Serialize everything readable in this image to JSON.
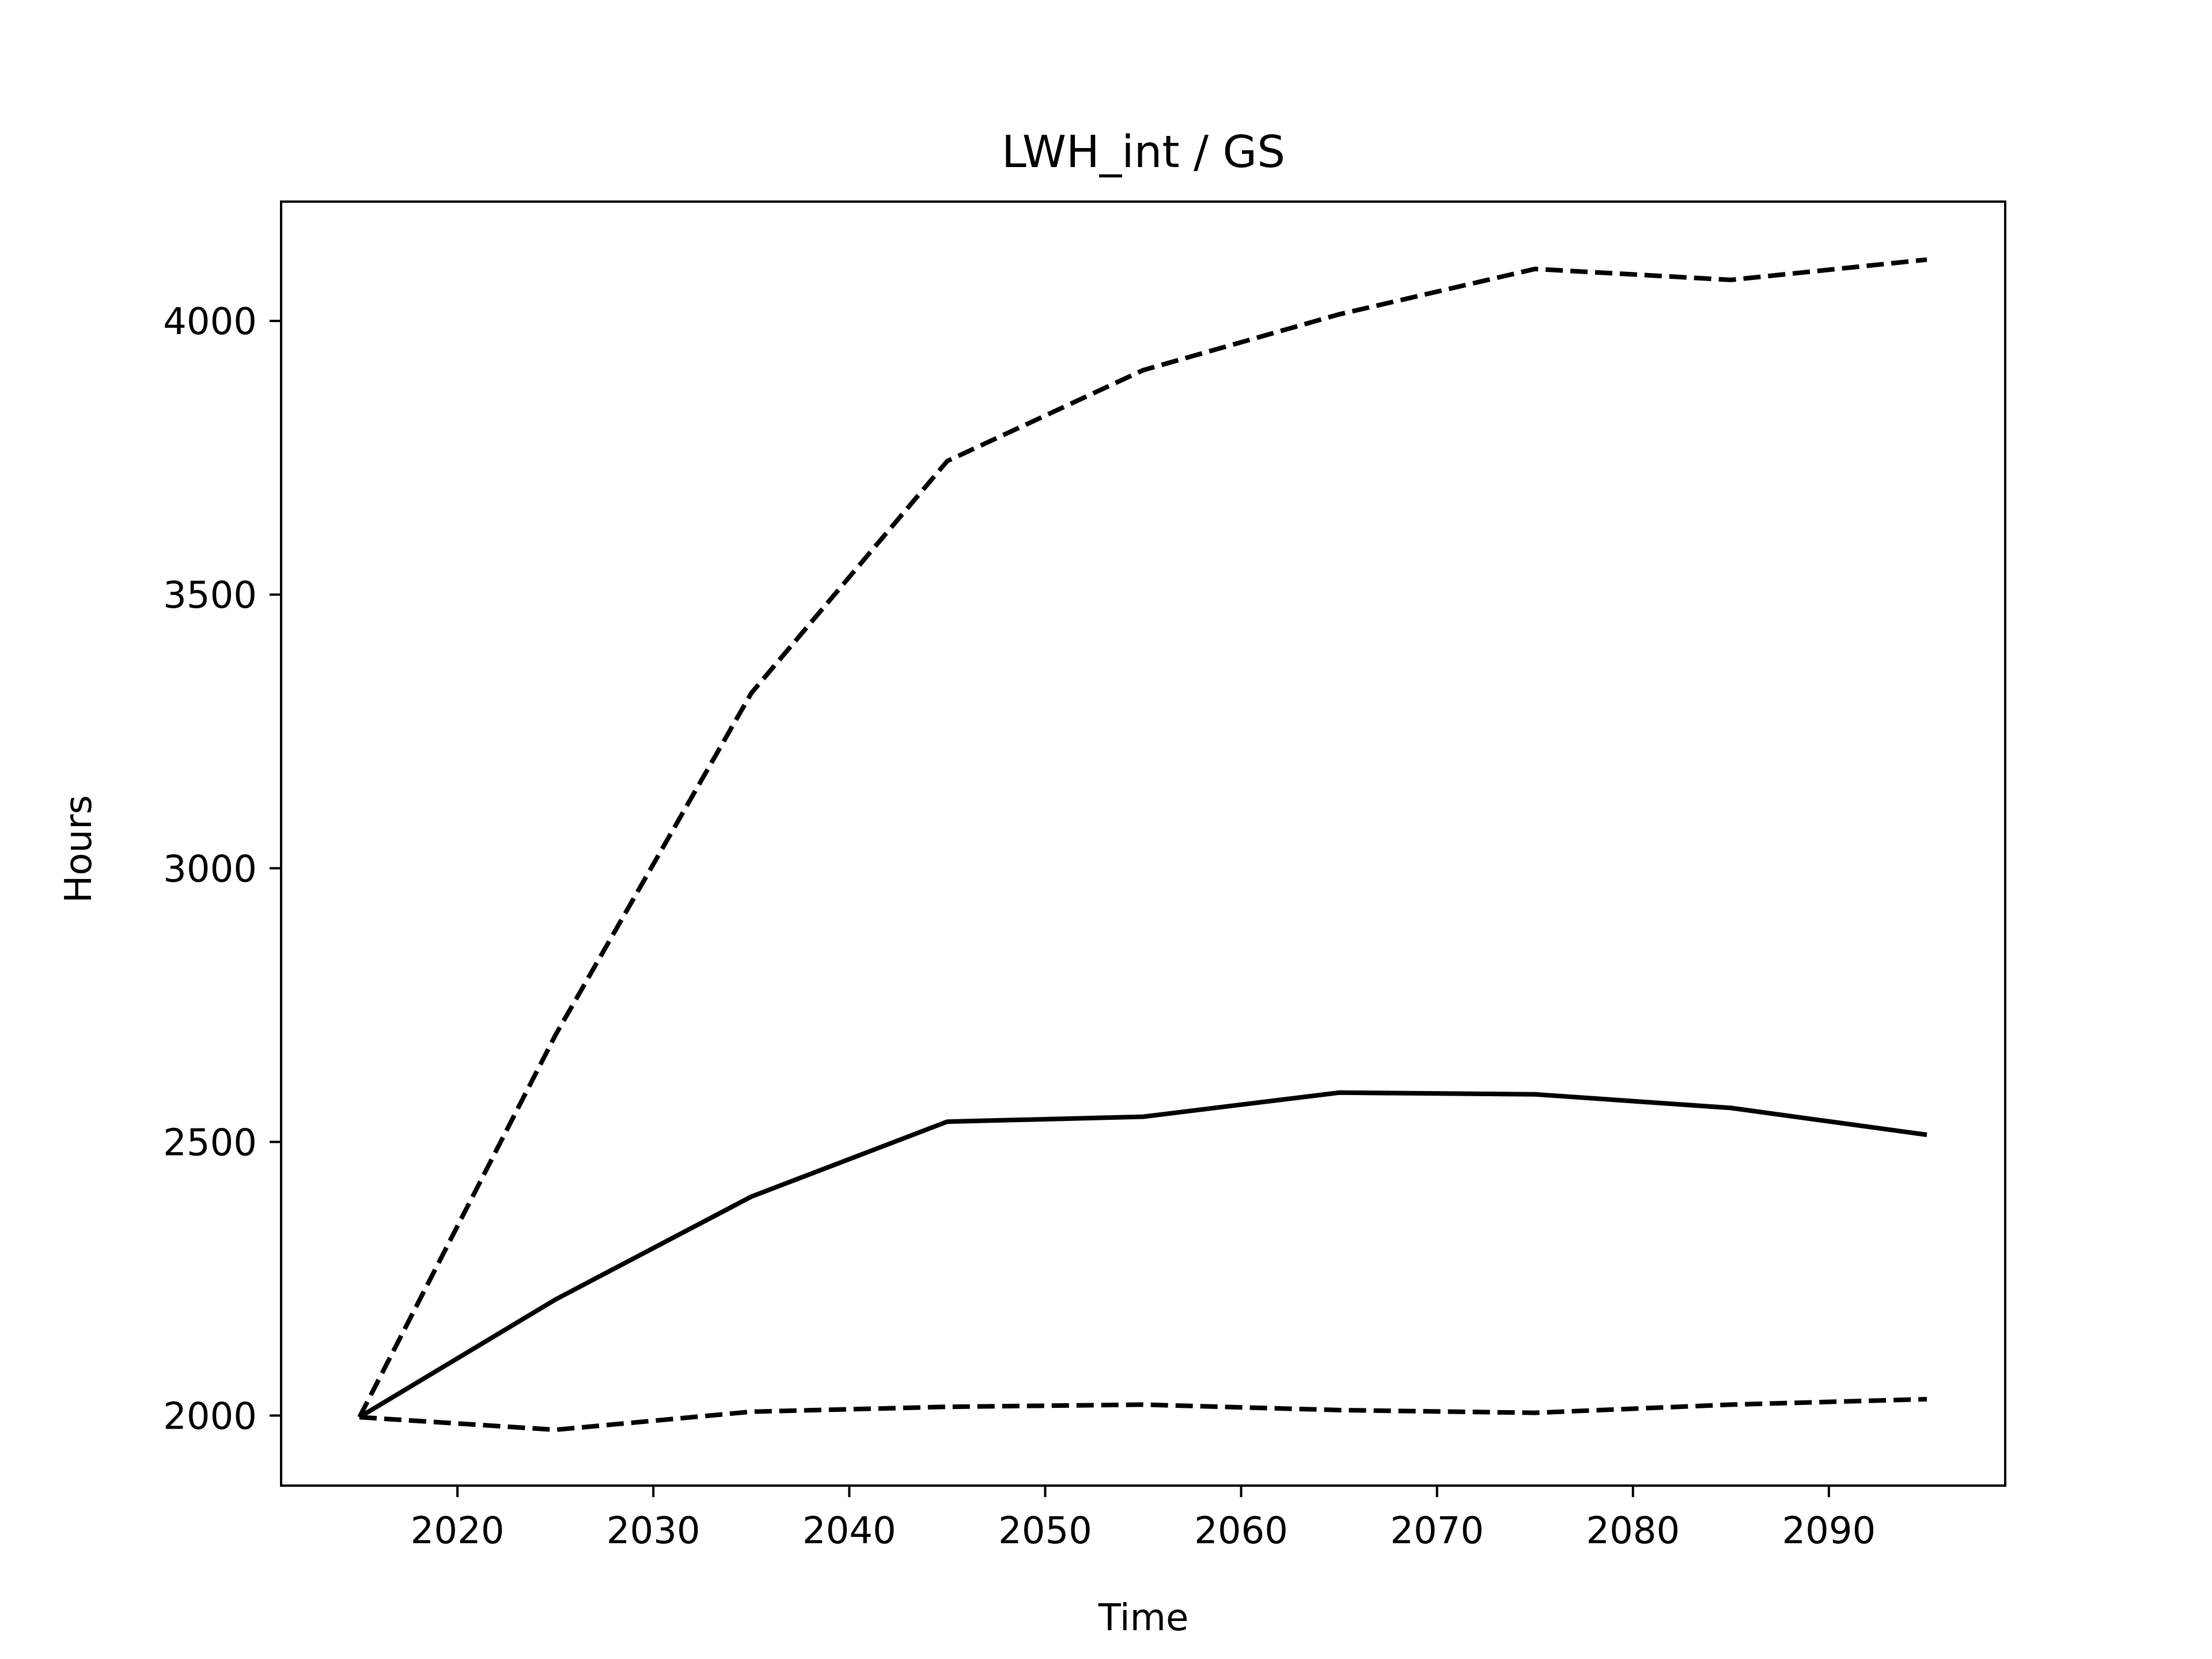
{
  "chart_data": {
    "type": "line",
    "title": "LWH_int / GS",
    "xlabel": "Time",
    "ylabel": "Hours",
    "xlim": [
      2011,
      2099
    ],
    "ylim": [
      1872,
      4218
    ],
    "xticks": [
      2020,
      2030,
      2040,
      2050,
      2060,
      2070,
      2080,
      2090
    ],
    "yticks": [
      2000,
      2500,
      3000,
      3500,
      4000
    ],
    "grid": false,
    "legend": "none",
    "x": [
      2015,
      2025,
      2035,
      2045,
      2055,
      2065,
      2075,
      2085,
      2095
    ],
    "series": [
      {
        "style": "solid",
        "color": "#000000",
        "values": [
          1997,
          2212,
          2400,
          2537,
          2546,
          2590,
          2587,
          2562,
          2513
        ]
      },
      {
        "style": "dashed",
        "color": "#000000",
        "values": [
          1997,
          2695,
          3320,
          3744,
          3910,
          4012,
          4095,
          4075,
          4112
        ]
      },
      {
        "style": "dashed",
        "color": "#000000",
        "values": [
          1997,
          1974,
          2007,
          2016,
          2020,
          2010,
          2005,
          2020,
          2030
        ]
      }
    ]
  }
}
